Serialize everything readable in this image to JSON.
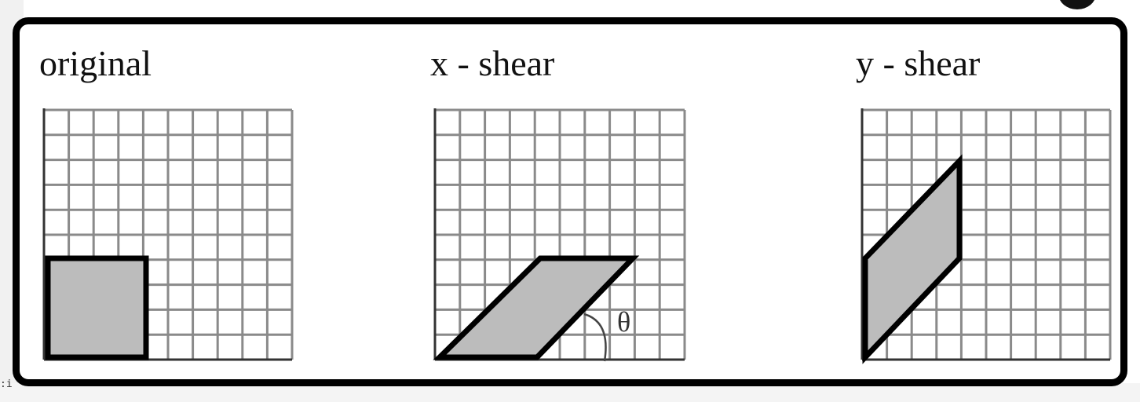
{
  "panels": [
    {
      "title": "original"
    },
    {
      "title": "x - shear",
      "angle_label": "θ"
    },
    {
      "title": "y - shear"
    }
  ],
  "colors": {
    "shape_fill": "#bcbcbc",
    "grid": "#8a8a8a",
    "frame": "#000000"
  }
}
